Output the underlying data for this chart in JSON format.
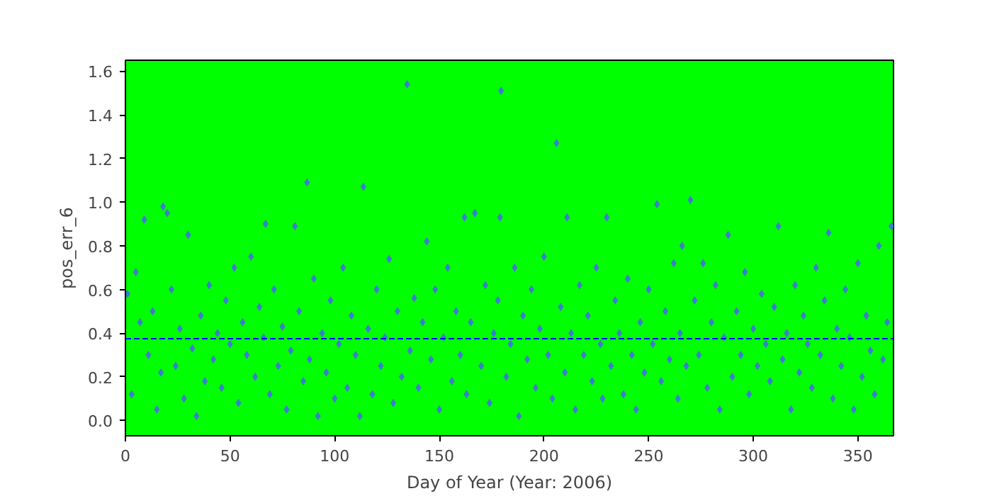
{
  "chart_data": {
    "type": "scatter",
    "xlabel": "Day of Year (Year: 2006)",
    "ylabel": "pos_err_6",
    "x": [
      1,
      3,
      5,
      7,
      9,
      11,
      13,
      15,
      17,
      18,
      20,
      22,
      24,
      26,
      28,
      30,
      32,
      34,
      36,
      38,
      40,
      42,
      44,
      46,
      48,
      50,
      52,
      54,
      56,
      58,
      60,
      62,
      64,
      66,
      67,
      69,
      71,
      73,
      75,
      77,
      79,
      81,
      83,
      85,
      86.8,
      88,
      90,
      92,
      94,
      96,
      98,
      100,
      102,
      104,
      106,
      108,
      110,
      112,
      113.7,
      116,
      118,
      120,
      122,
      124,
      126,
      128,
      130,
      132,
      134.6,
      136,
      138,
      140,
      142,
      144,
      146,
      148,
      150,
      152,
      154,
      156,
      158,
      160,
      162,
      163,
      165,
      167,
      170,
      172,
      174,
      176,
      178,
      179,
      179.5,
      182,
      184,
      186,
      188,
      190,
      192,
      194,
      196,
      198,
      200,
      202,
      204,
      206,
      208,
      210,
      211,
      213,
      215,
      217,
      219,
      221,
      223,
      225,
      227,
      228,
      230,
      232,
      234,
      236,
      238,
      240,
      242,
      244,
      246,
      248,
      250,
      252,
      254,
      256,
      258,
      260,
      262,
      264,
      265,
      266,
      268,
      270,
      272,
      274,
      276,
      278,
      280,
      282,
      284,
      286,
      288,
      290,
      292,
      294,
      296,
      298,
      300,
      302,
      304,
      306,
      308,
      310,
      312,
      314,
      316,
      318,
      320,
      322,
      324,
      326,
      328,
      330,
      332,
      334,
      336,
      338,
      340,
      342,
      344,
      346,
      348,
      350,
      352,
      354,
      356,
      358,
      360,
      362,
      364,
      366
    ],
    "values": [
      0.58,
      0.12,
      0.68,
      0.45,
      0.92,
      0.3,
      0.5,
      0.05,
      0.22,
      0.98,
      0.95,
      0.6,
      0.25,
      0.42,
      0.1,
      0.85,
      0.33,
      0.02,
      0.48,
      0.18,
      0.62,
      0.28,
      0.4,
      0.15,
      0.55,
      0.35,
      0.7,
      0.08,
      0.45,
      0.3,
      0.75,
      0.2,
      0.52,
      0.38,
      0.9,
      0.12,
      0.6,
      0.25,
      0.43,
      0.05,
      0.32,
      0.89,
      0.5,
      0.18,
      1.09,
      0.28,
      0.65,
      0.02,
      0.4,
      0.22,
      0.55,
      0.1,
      0.35,
      0.7,
      0.15,
      0.48,
      0.3,
      0.02,
      1.07,
      0.42,
      0.12,
      0.6,
      0.25,
      0.38,
      0.74,
      0.08,
      0.5,
      0.2,
      1.54,
      0.32,
      0.56,
      0.15,
      0.45,
      0.82,
      0.28,
      0.6,
      0.05,
      0.38,
      0.7,
      0.18,
      0.5,
      0.3,
      0.93,
      0.12,
      0.45,
      0.95,
      0.25,
      0.62,
      0.08,
      0.4,
      0.55,
      0.93,
      1.51,
      0.2,
      0.35,
      0.7,
      0.02,
      0.48,
      0.28,
      0.6,
      0.15,
      0.42,
      0.75,
      0.3,
      0.1,
      1.27,
      0.52,
      0.22,
      0.93,
      0.4,
      0.05,
      0.62,
      0.3,
      0.48,
      0.18,
      0.7,
      0.35,
      0.1,
      0.93,
      0.25,
      0.55,
      0.4,
      0.12,
      0.65,
      0.3,
      0.05,
      0.45,
      0.22,
      0.6,
      0.35,
      0.99,
      0.18,
      0.5,
      0.28,
      0.72,
      0.1,
      0.4,
      0.8,
      0.25,
      1.01,
      0.55,
      0.3,
      0.72,
      0.15,
      0.45,
      0.62,
      0.05,
      0.38,
      0.85,
      0.2,
      0.5,
      0.3,
      0.68,
      0.12,
      0.42,
      0.25,
      0.58,
      0.35,
      0.18,
      0.52,
      0.89,
      0.28,
      0.4,
      0.05,
      0.62,
      0.22,
      0.48,
      0.35,
      0.15,
      0.7,
      0.3,
      0.55,
      0.86,
      0.1,
      0.42,
      0.25,
      0.6,
      0.38,
      0.05,
      0.72,
      0.2,
      0.48,
      0.32,
      0.12,
      0.8,
      0.28,
      0.45,
      0.89
    ],
    "color": "#3d7ccf",
    "marker": "diamond",
    "xlim": [
      0,
      367
    ],
    "ylim": [
      -0.07,
      1.65
    ],
    "xticks": [
      0,
      50,
      100,
      150,
      200,
      250,
      300,
      350
    ],
    "yticks": [
      {
        "value": 0,
        "label": "0.0"
      },
      0.2,
      0.4,
      0.6,
      0.8,
      {
        "value": 1,
        "label": "1.0"
      },
      1.2,
      1.4,
      1.6
    ],
    "ref_lines": [
      {
        "axis": "y",
        "value": 0.375,
        "color": "#0000ff",
        "line_style": "dashed"
      }
    ],
    "grid": false
  }
}
